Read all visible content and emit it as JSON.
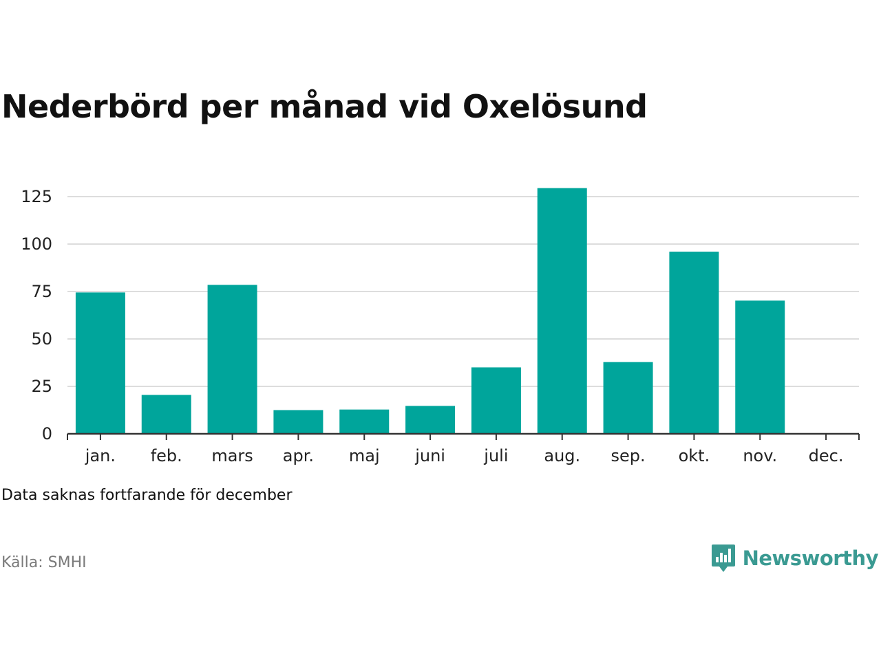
{
  "title": "Nederbörd per månad vid Oxelösund",
  "note": "Data saknas fortfarande för december",
  "source": "Källa: SMHI",
  "brand": {
    "name": "Newsworthy",
    "icon": "newsworthy-logo-icon",
    "color": "#3a9a92"
  },
  "colors": {
    "bar": "#00a59b",
    "grid": "#dddddd",
    "axis": "#333333"
  },
  "chart_data": {
    "type": "bar",
    "categories": [
      "jan.",
      "feb.",
      "mars",
      "apr.",
      "maj",
      "juni",
      "juli",
      "aug.",
      "sep.",
      "okt.",
      "nov.",
      "dec."
    ],
    "values": [
      74.5,
      20.5,
      78.5,
      12.5,
      12.8,
      14.7,
      35.0,
      129.5,
      37.8,
      96.0,
      70.2,
      null
    ],
    "yticks": [
      0,
      25,
      50,
      75,
      100,
      125
    ],
    "ylim": [
      0,
      130
    ],
    "grid": true
  }
}
